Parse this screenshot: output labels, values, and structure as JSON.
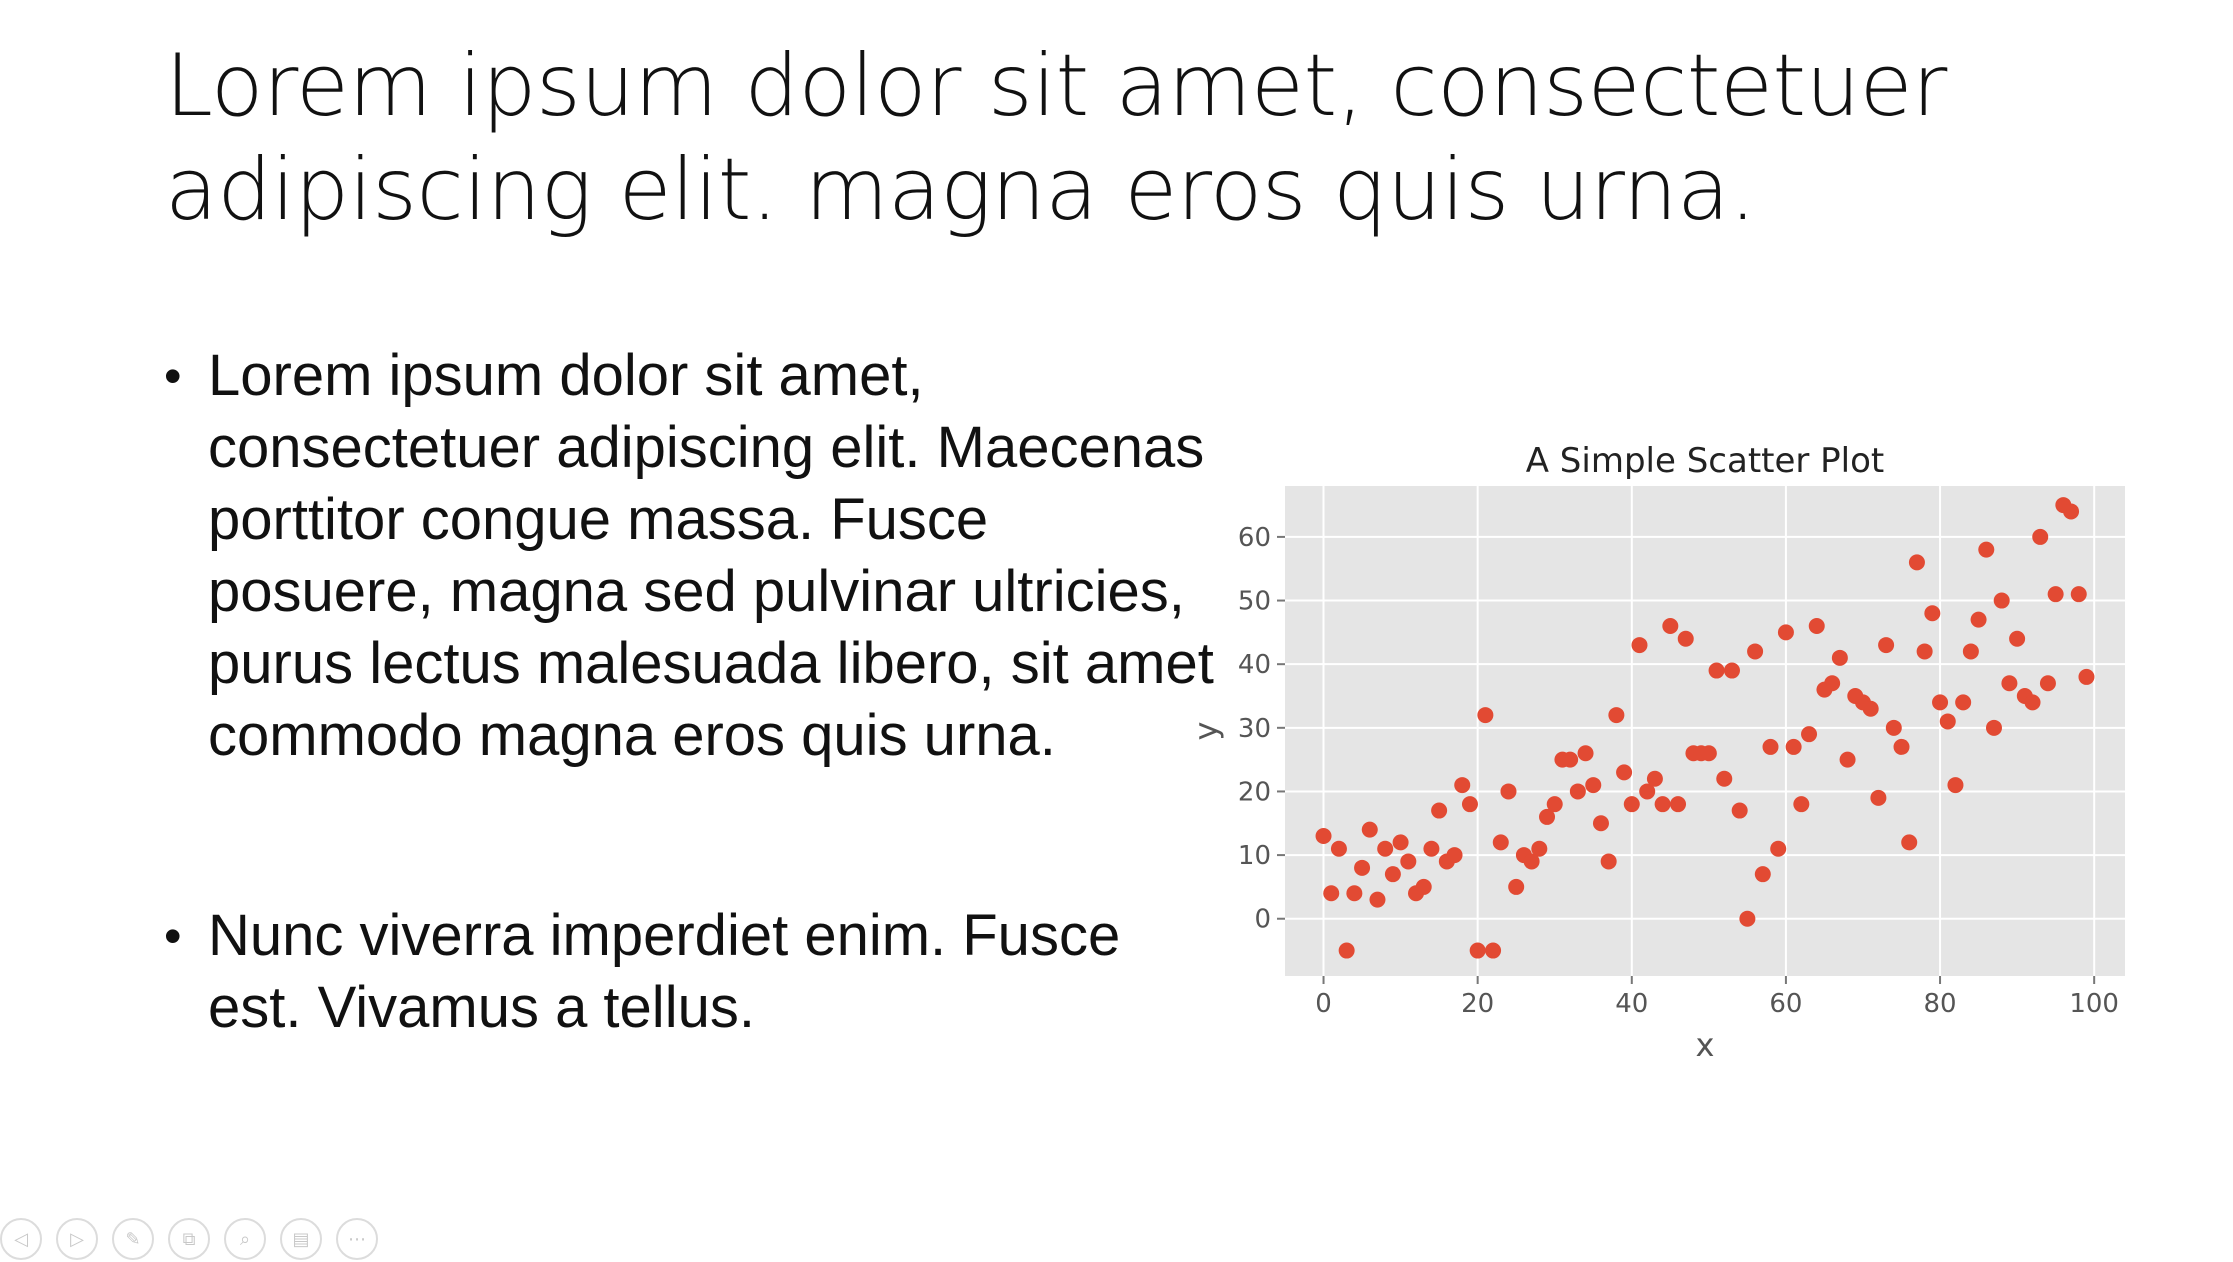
{
  "slide": {
    "title": "Lorem ipsum dolor sit amet, consectetuer adipiscing elit. magna eros quis urna.",
    "bullets": [
      "Lorem ipsum dolor sit amet, consectetuer adipiscing elit. Maecenas porttitor congue massa. Fusce posuere, magna sed pulvinar ultricies, purus lectus malesuada libero, sit amet commodo magna eros quis urna.",
      "Nunc viverra imperdiet enim. Fusce est. Vivamus a tellus."
    ],
    "bullet_glyph": "•"
  },
  "toolbar": {
    "buttons": [
      {
        "name": "previous-slide-button",
        "icon": "arrow-left-icon",
        "glyph": "◁"
      },
      {
        "name": "next-slide-button",
        "icon": "arrow-right-icon",
        "glyph": "▷"
      },
      {
        "name": "pen-tool-button",
        "icon": "pen-icon",
        "glyph": "✎"
      },
      {
        "name": "see-all-slides-button",
        "icon": "slides-grid-icon",
        "glyph": "⧉"
      },
      {
        "name": "zoom-button",
        "icon": "magnifier-icon",
        "glyph": "⌕"
      },
      {
        "name": "subtitles-button",
        "icon": "subtitles-icon",
        "glyph": "▤"
      },
      {
        "name": "more-options-button",
        "icon": "ellipsis-icon",
        "glyph": "⋯"
      }
    ]
  },
  "colors": {
    "plot_background": "#e5e5e5",
    "grid": "#ffffff",
    "marker": "#e24a33",
    "axis_text": "#555555"
  },
  "chart_data": {
    "type": "scatter",
    "title": "A Simple Scatter Plot",
    "xlabel": "x",
    "ylabel": "y",
    "xlim": [
      -5,
      104
    ],
    "ylim": [
      -9,
      68
    ],
    "xticks": [
      0,
      20,
      40,
      60,
      80,
      100
    ],
    "yticks": [
      0,
      10,
      20,
      30,
      40,
      50,
      60
    ],
    "grid": true,
    "legend": "none",
    "style": "ggplot",
    "x": [
      0,
      1,
      2,
      3,
      4,
      5,
      6,
      7,
      8,
      9,
      10,
      11,
      12,
      13,
      14,
      15,
      16,
      17,
      18,
      19,
      20,
      21,
      22,
      23,
      24,
      25,
      26,
      27,
      28,
      29,
      30,
      31,
      32,
      33,
      34,
      35,
      36,
      37,
      38,
      39,
      40,
      41,
      42,
      43,
      44,
      45,
      46,
      47,
      48,
      49,
      50,
      51,
      52,
      53,
      54,
      55,
      56,
      57,
      58,
      59,
      60,
      61,
      62,
      63,
      64,
      65,
      66,
      67,
      68,
      69,
      70,
      71,
      72,
      73,
      74,
      75,
      76,
      77,
      78,
      79,
      80,
      81,
      82,
      83,
      84,
      85,
      86,
      87,
      88,
      89,
      90,
      91,
      92,
      93,
      94,
      95,
      96,
      97,
      98,
      99
    ],
    "y": [
      13,
      4,
      11,
      -5,
      4,
      8,
      14,
      3,
      11,
      7,
      12,
      9,
      4,
      5,
      11,
      17,
      9,
      10,
      21,
      18,
      -5,
      32,
      -5,
      12,
      20,
      5,
      10,
      9,
      11,
      16,
      18,
      25,
      25,
      20,
      26,
      21,
      15,
      9,
      32,
      23,
      18,
      43,
      20,
      22,
      18,
      46,
      18,
      44,
      26,
      26,
      26,
      39,
      22,
      39,
      17,
      0,
      42,
      7,
      27,
      11,
      45,
      27,
      18,
      29,
      46,
      36,
      37,
      41,
      25,
      35,
      34,
      33,
      19,
      43,
      30,
      27,
      12,
      56,
      42,
      48,
      34,
      31,
      21,
      34,
      42,
      47,
      58,
      30,
      50,
      37,
      44,
      35,
      34,
      60,
      37,
      51,
      65,
      64,
      51,
      38
    ]
  }
}
